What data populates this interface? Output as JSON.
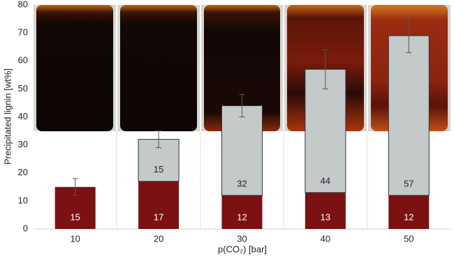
{
  "chart_data": {
    "type": "stacked-bar",
    "x_label": "p(CO₂) [bar]",
    "y_label": "Precipitated lignin [wt%]",
    "categories": [
      "10",
      "20",
      "30",
      "40",
      "50"
    ],
    "series": [
      {
        "color": "#7b1113",
        "label_color": "#ffffff",
        "values": [
          15,
          17,
          12,
          13,
          12
        ]
      },
      {
        "color": "#c4c9ca",
        "label_color": "#222222",
        "values": [
          null,
          15,
          32,
          44,
          57
        ]
      }
    ],
    "errors": [
      3,
      3,
      4,
      7,
      6
    ],
    "ylim": [
      0,
      80
    ],
    "yticks": [
      0,
      10,
      20,
      30,
      40,
      50,
      60,
      70,
      80
    ]
  }
}
